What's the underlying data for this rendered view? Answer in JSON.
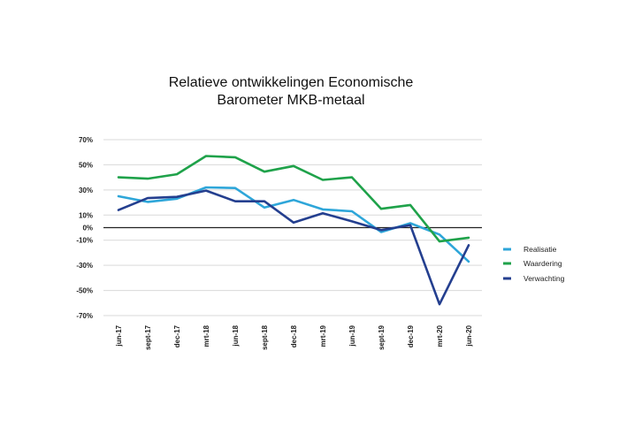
{
  "chart_data": {
    "type": "line",
    "title_lines": [
      "Relatieve ontwikkelingen Economische",
      "Barometer MKB-metaal"
    ],
    "xlabel": "",
    "ylabel": "",
    "categories": [
      "jun-17",
      "sept-17",
      "dec-17",
      "mrt-18",
      "jun-18",
      "sept-18",
      "dec-18",
      "mrt-19",
      "jun-19",
      "sept-19",
      "dec-19",
      "mrt-20",
      "jun-20"
    ],
    "y_ticks": [
      {
        "value": 70,
        "label": "70%"
      },
      {
        "value": 50,
        "label": "50%"
      },
      {
        "value": 30,
        "label": "30%"
      },
      {
        "value": 10,
        "label": "10%"
      },
      {
        "value": 0,
        "label": "0%"
      },
      {
        "value": -10,
        "label": "-10%"
      },
      {
        "value": -30,
        "label": "-30%"
      },
      {
        "value": -50,
        "label": "-50%"
      },
      {
        "value": -70,
        "label": "-70%"
      }
    ],
    "ylim": [
      -70,
      70
    ],
    "grid": true,
    "legend_position": "right",
    "series": [
      {
        "name": "Realisatie",
        "color": "#2ea6d9",
        "values": [
          25,
          20.5,
          23,
          32,
          31.5,
          16,
          22,
          14.5,
          13,
          -3.5,
          3.5,
          -5.5,
          -27
        ]
      },
      {
        "name": "Waardering",
        "color": "#1fa24a",
        "values": [
          40,
          39,
          42.5,
          57,
          56,
          44.5,
          49,
          38,
          40,
          15,
          18,
          -11,
          -8
        ]
      },
      {
        "name": "Verwachting",
        "color": "#243f8f",
        "values": [
          14,
          23.5,
          24.5,
          29.5,
          21,
          21,
          4,
          11.5,
          5,
          -2,
          2,
          -61,
          -14
        ]
      }
    ]
  }
}
